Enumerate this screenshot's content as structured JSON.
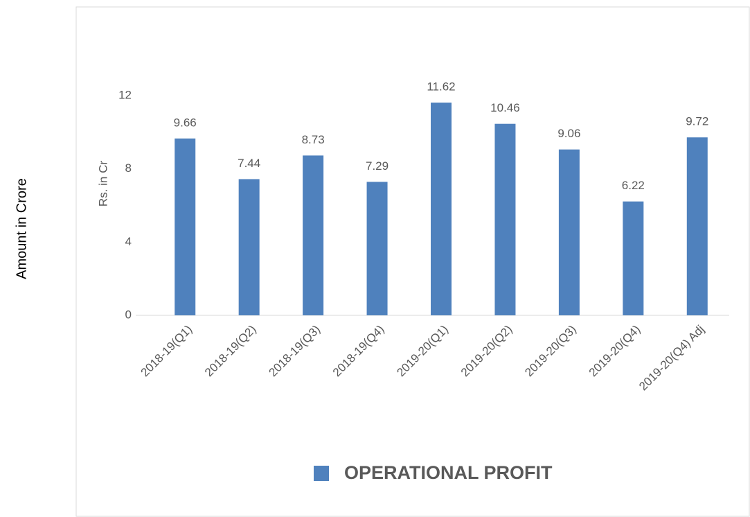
{
  "chart_data": {
    "type": "bar",
    "outer_label": "Amount in Crore",
    "ylabel": "Rs. in Cr",
    "categories": [
      "2018-19(Q1)",
      "2018-19(Q2)",
      "2018-19(Q3)",
      "2018-19(Q4)",
      "2019-20(Q1)",
      "2019-20(Q2)",
      "2019-20(Q3)",
      "2019-20(Q4)",
      "2019-20(Q4) Adj"
    ],
    "series": [
      {
        "name": "OPERATIONAL PROFIT",
        "color": "#4f81bd",
        "values": [
          9.66,
          7.44,
          8.73,
          7.29,
          11.62,
          10.46,
          9.06,
          6.22,
          9.72
        ]
      }
    ],
    "ylim": [
      0,
      12
    ],
    "yticks": [
      0,
      4,
      8,
      12
    ],
    "grid": false,
    "legend": "bottom"
  }
}
